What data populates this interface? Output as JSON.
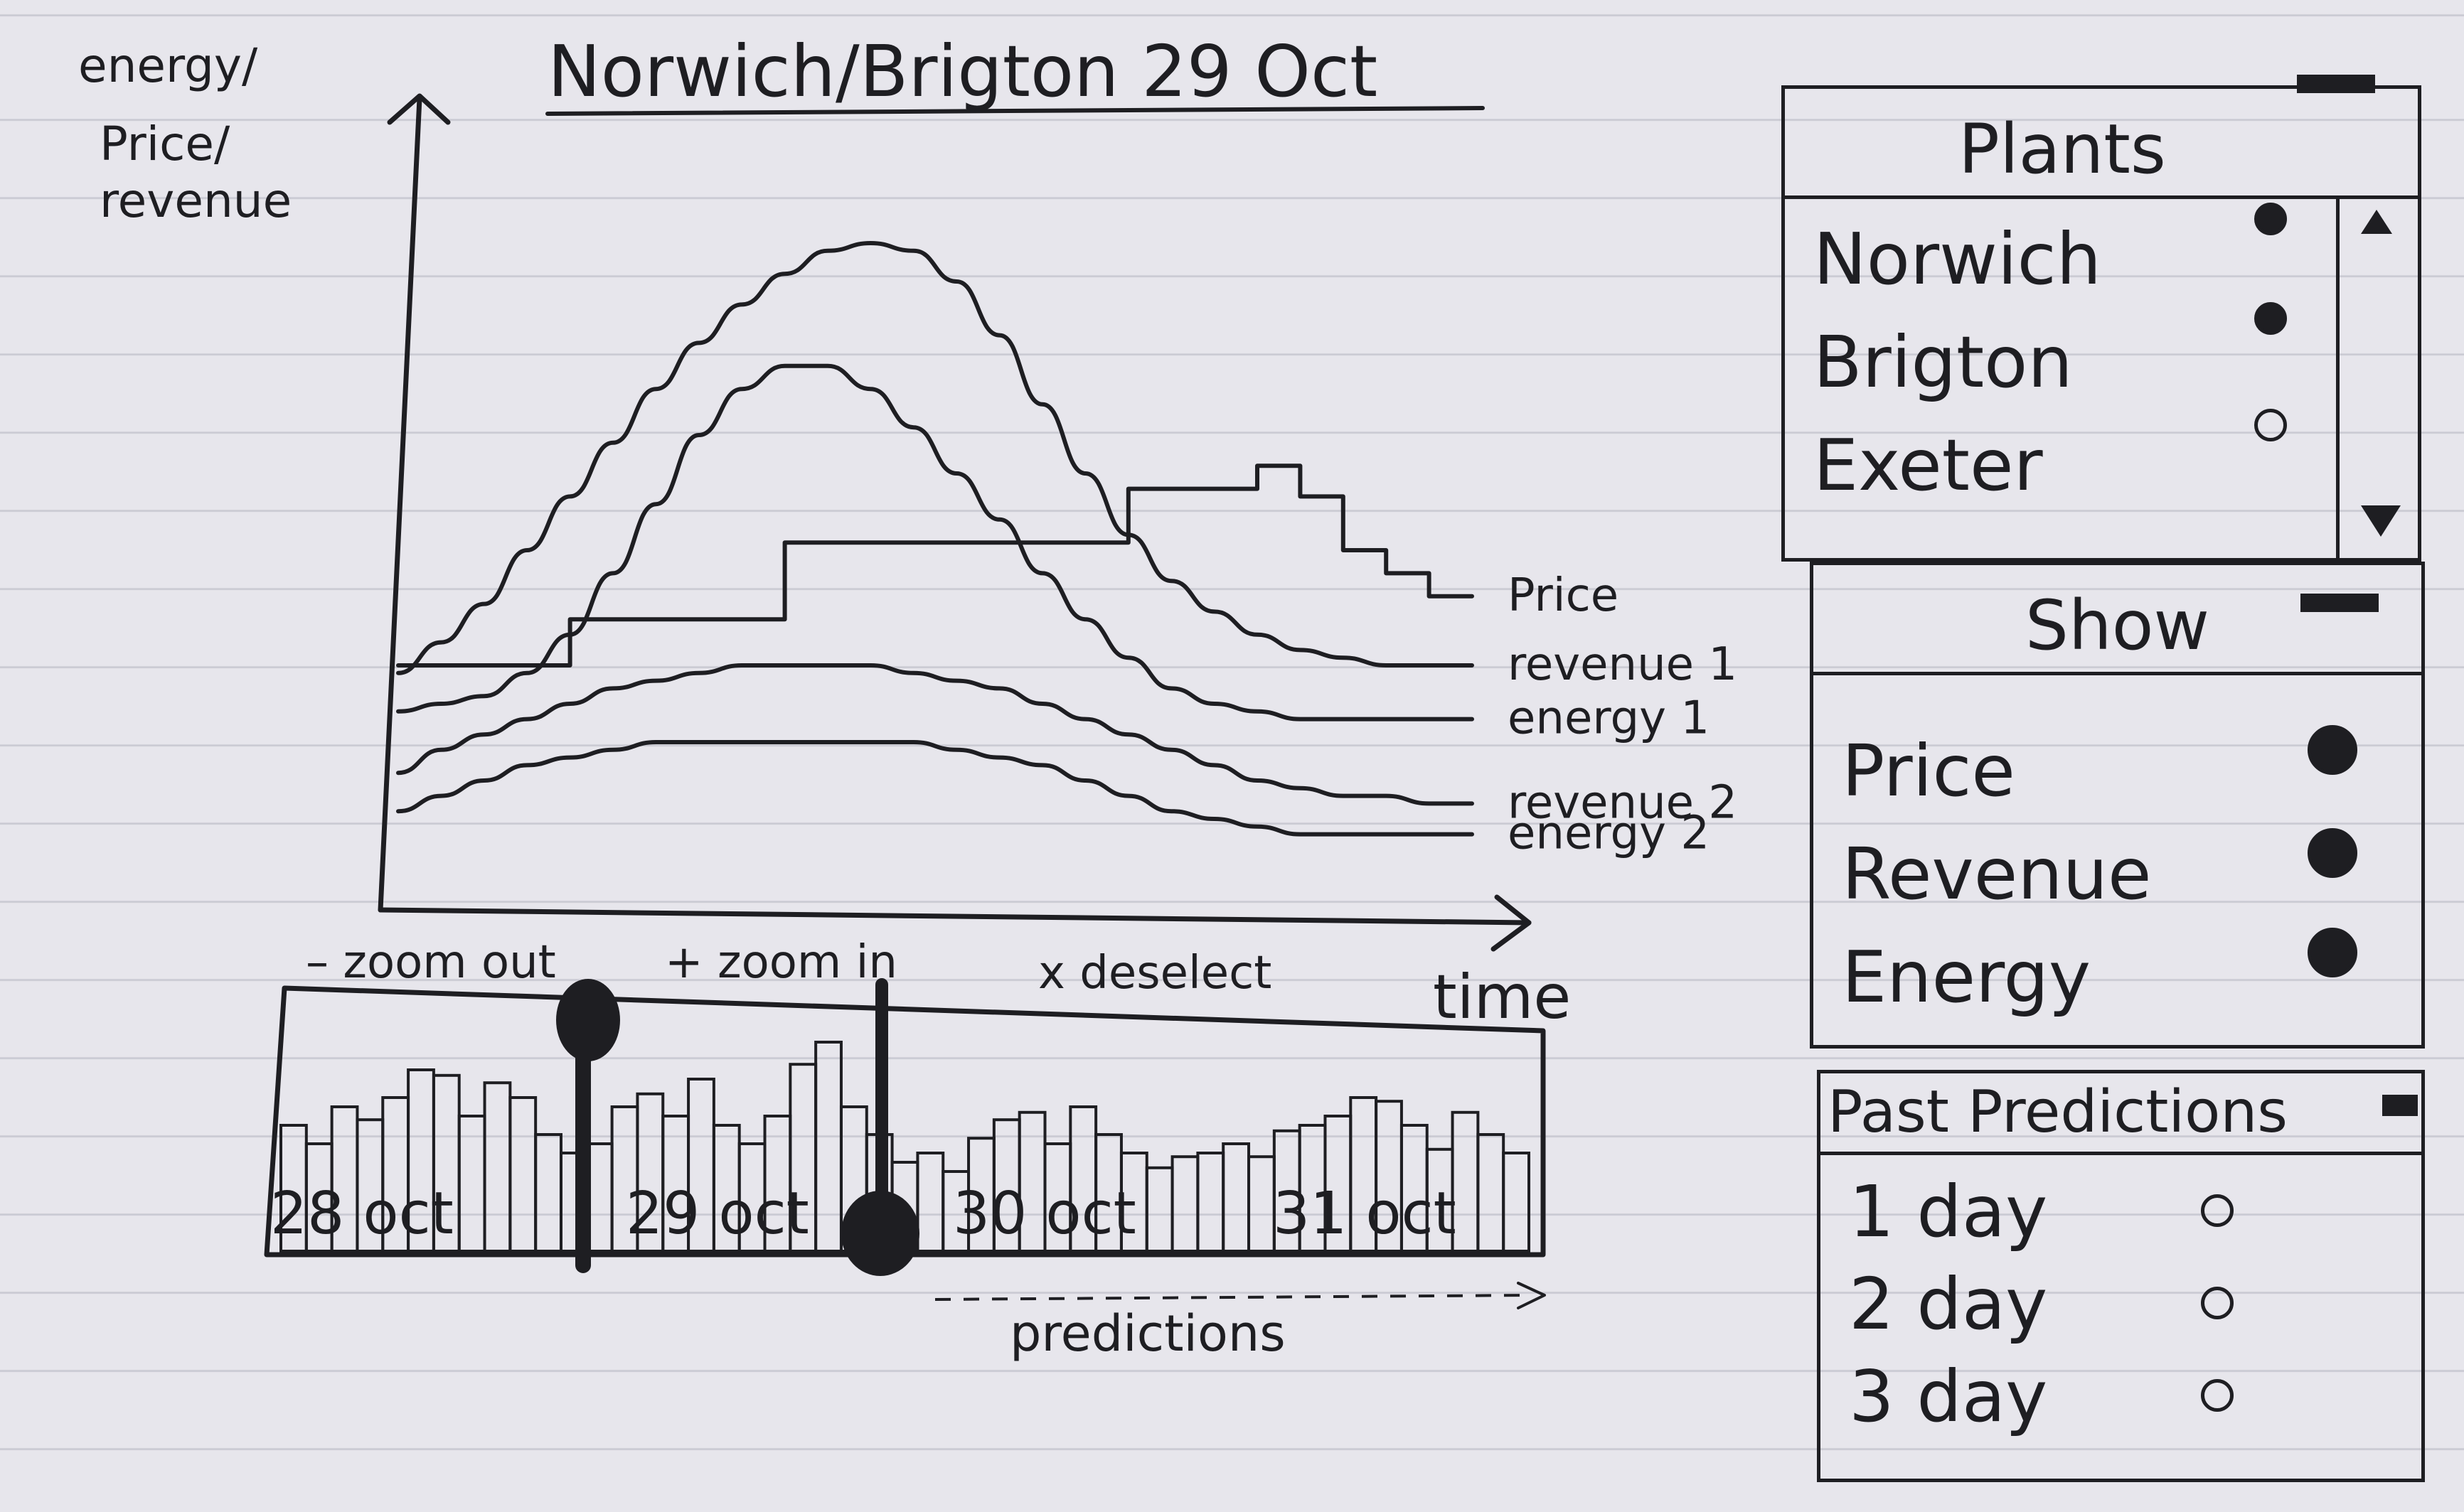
{
  "chart": {
    "title": "Norwich/Brigton 29 Oct",
    "ylabel": [
      "energy/",
      "Price/",
      "revenue"
    ],
    "xlabel": "time"
  },
  "chart_data": {
    "type": "line",
    "title": "Norwich/Brigton 29 Oct",
    "xlabel": "time",
    "ylabel": "energy/ Price/ revenue",
    "series": [
      {
        "name": "Price",
        "y": [
          3.0,
          3.0,
          3.0,
          3.0,
          3.6,
          3.6,
          3.6,
          3.6,
          3.6,
          4.6,
          4.6,
          4.6,
          4.6,
          4.6,
          4.6,
          4.6,
          4.6,
          5.3,
          5.3,
          5.3,
          5.6,
          5.2,
          4.5,
          4.2,
          3.9,
          3.9
        ]
      },
      {
        "name": "revenue 1",
        "y": [
          2.9,
          3.3,
          3.8,
          4.5,
          5.2,
          5.9,
          6.6,
          7.2,
          7.7,
          8.1,
          8.4,
          8.5,
          8.4,
          8.0,
          7.3,
          6.4,
          5.5,
          4.7,
          4.1,
          3.7,
          3.4,
          3.2,
          3.1,
          3.0,
          3.0,
          3.0
        ]
      },
      {
        "name": "energy 1",
        "y": [
          2.4,
          2.5,
          2.6,
          2.9,
          3.4,
          4.2,
          5.1,
          6.0,
          6.6,
          6.9,
          6.9,
          6.6,
          6.1,
          5.5,
          4.9,
          4.2,
          3.6,
          3.1,
          2.7,
          2.5,
          2.4,
          2.3,
          2.3,
          2.3,
          2.3,
          2.3
        ]
      },
      {
        "name": "revenue 2",
        "y": [
          1.6,
          1.9,
          2.1,
          2.3,
          2.5,
          2.7,
          2.8,
          2.9,
          3.0,
          3.0,
          3.0,
          3.0,
          2.9,
          2.8,
          2.7,
          2.5,
          2.3,
          2.1,
          1.9,
          1.7,
          1.5,
          1.4,
          1.3,
          1.3,
          1.2,
          1.2
        ]
      },
      {
        "name": "energy 2",
        "y": [
          1.1,
          1.3,
          1.5,
          1.7,
          1.8,
          1.9,
          2.0,
          2.0,
          2.0,
          2.0,
          2.0,
          2.0,
          2.0,
          1.9,
          1.8,
          1.7,
          1.5,
          1.3,
          1.1,
          1.0,
          0.9,
          0.8,
          0.8,
          0.8,
          0.8,
          0.8
        ]
      }
    ],
    "ylim": [
      0,
      10
    ],
    "legend": "right, at line ends",
    "grid": false
  },
  "timeline": {
    "zoom_out": "– zoom out",
    "zoom_in": "+ zoom in",
    "deselect": "x deselect",
    "dates": [
      "28 oct",
      "29 oct",
      "30 oct",
      "31 oct"
    ],
    "predictions_label": "predictions",
    "bars": [
      0.45,
      0.35,
      0.55,
      0.48,
      0.6,
      0.75,
      0.72,
      0.5,
      0.68,
      0.6,
      0.4,
      0.3,
      0.35,
      0.55,
      0.62,
      0.5,
      0.7,
      0.45,
      0.35,
      0.5,
      0.78,
      0.9,
      0.55,
      0.4,
      0.25,
      0.3,
      0.2,
      0.38,
      0.48,
      0.52,
      0.35,
      0.55,
      0.4,
      0.3,
      0.22,
      0.28,
      0.3,
      0.35,
      0.28,
      0.42,
      0.45,
      0.5,
      0.6,
      0.58,
      0.45,
      0.32,
      0.52,
      0.4,
      0.3
    ]
  },
  "plants_panel": {
    "title": "Plants",
    "items": [
      {
        "label": "Norwich",
        "selected": true
      },
      {
        "label": "Brigton",
        "selected": true
      },
      {
        "label": "Exeter",
        "selected": false
      }
    ]
  },
  "show_panel": {
    "title": "Show",
    "items": [
      {
        "label": "Price",
        "selected": true
      },
      {
        "label": "Revenue",
        "selected": true
      },
      {
        "label": "Energy",
        "selected": true
      }
    ]
  },
  "past_panel": {
    "title": "Past Predictions",
    "items": [
      {
        "label": "1 day",
        "selected": false
      },
      {
        "label": "2 day",
        "selected": false
      },
      {
        "label": "3 day",
        "selected": false
      }
    ]
  }
}
